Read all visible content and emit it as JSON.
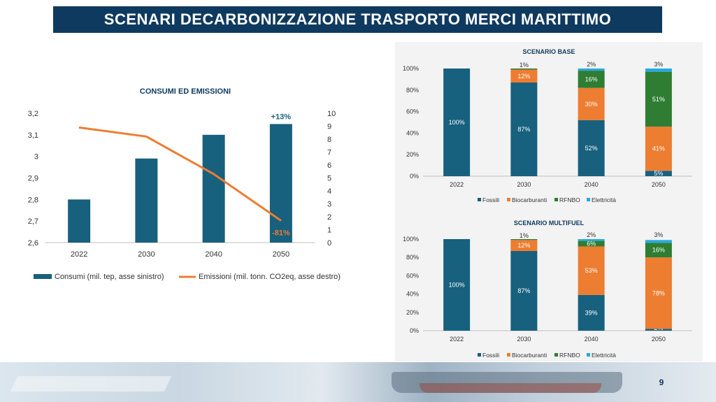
{
  "page": {
    "title": "SCENARI DECARBONIZZAZIONE TRASPORTO MERCI MARITTIMO",
    "page_number": "9"
  },
  "colors": {
    "title_bar": "#0f3a5f",
    "fossili": "#17607e",
    "biocarburanti": "#ed7d31",
    "rfnbo": "#2e7d32",
    "elettricita": "#27a9e1",
    "emissioni_line": "#ed7d31",
    "positive_label": "#17607e",
    "negative_label": "#ed7d31"
  },
  "chart_data": [
    {
      "type": "bar",
      "title": "CONSUMI ED EMISSIONI",
      "categories": [
        "2022",
        "2030",
        "2040",
        "2050"
      ],
      "series": [
        {
          "name": "Consumi (mil. tep, asse sinistro)",
          "type": "bar",
          "axis": "left",
          "values": [
            2.8,
            2.99,
            3.1,
            3.15
          ]
        },
        {
          "name": "Emissioni (mil. tonn. CO2eq, asse destro)",
          "type": "line",
          "axis": "right",
          "values": [
            8.9,
            8.2,
            5.3,
            1.7
          ]
        }
      ],
      "ylim_left": [
        2.6,
        3.2
      ],
      "yticks_left": [
        "2,6",
        "2,7",
        "2,8",
        "2,9",
        "3",
        "3,1",
        "3,2"
      ],
      "ylim_right": [
        0,
        10
      ],
      "yticks_right": [
        "0",
        "1",
        "2",
        "3",
        "4",
        "5",
        "6",
        "7",
        "8",
        "9",
        "10"
      ],
      "annotations": [
        {
          "text": "+13%",
          "category": "2050",
          "series": "Consumi (mil. tep, asse sinistro)"
        },
        {
          "text": "-81%",
          "category": "2050",
          "series": "Emissioni (mil. tonn. CO2eq, asse destro)"
        }
      ],
      "legend": "bottom"
    },
    {
      "type": "bar",
      "stacked": true,
      "title": "SCENARIO BASE",
      "categories": [
        "2022",
        "2030",
        "2040",
        "2050"
      ],
      "series": [
        {
          "name": "Fossili",
          "values": [
            100,
            87,
            52,
            5
          ],
          "labels": [
            "100%",
            "87%",
            "52%",
            "5%"
          ]
        },
        {
          "name": "Biocarburanti",
          "values": [
            0,
            12,
            30,
            41
          ],
          "labels": [
            "",
            "12%",
            "30%",
            "41%"
          ]
        },
        {
          "name": "RFNBO",
          "values": [
            0,
            1,
            16,
            51
          ],
          "labels": [
            "",
            "1%",
            "16%",
            "51%"
          ]
        },
        {
          "name": "Elettricità",
          "values": [
            0,
            0,
            2,
            3
          ],
          "labels": [
            "",
            "",
            "2%",
            "3%"
          ]
        }
      ],
      "ylim": [
        0,
        100
      ],
      "yticks": [
        "0%",
        "20%",
        "40%",
        "60%",
        "80%",
        "100%"
      ],
      "legend": "bottom"
    },
    {
      "type": "bar",
      "stacked": true,
      "title": "SCENARIO MULTIFUEL",
      "categories": [
        "2022",
        "2030",
        "2040",
        "2050"
      ],
      "series": [
        {
          "name": "Fossili",
          "values": [
            100,
            87,
            39,
            2
          ],
          "labels": [
            "100%",
            "87%",
            "39%",
            "2%"
          ]
        },
        {
          "name": "Biocarburanti",
          "values": [
            0,
            12,
            53,
            78
          ],
          "labels": [
            "",
            "12%",
            "53%",
            "78%"
          ]
        },
        {
          "name": "RFNBO",
          "values": [
            0,
            1,
            6,
            16
          ],
          "labels": [
            "",
            "1%",
            "6%",
            "16%"
          ]
        },
        {
          "name": "Elettricità",
          "values": [
            0,
            0,
            2,
            3
          ],
          "labels": [
            "",
            "",
            "2%",
            "3%"
          ]
        }
      ],
      "ylim": [
        0,
        100
      ],
      "yticks": [
        "0%",
        "20%",
        "40%",
        "60%",
        "80%",
        "100%"
      ],
      "legend": "bottom"
    }
  ]
}
